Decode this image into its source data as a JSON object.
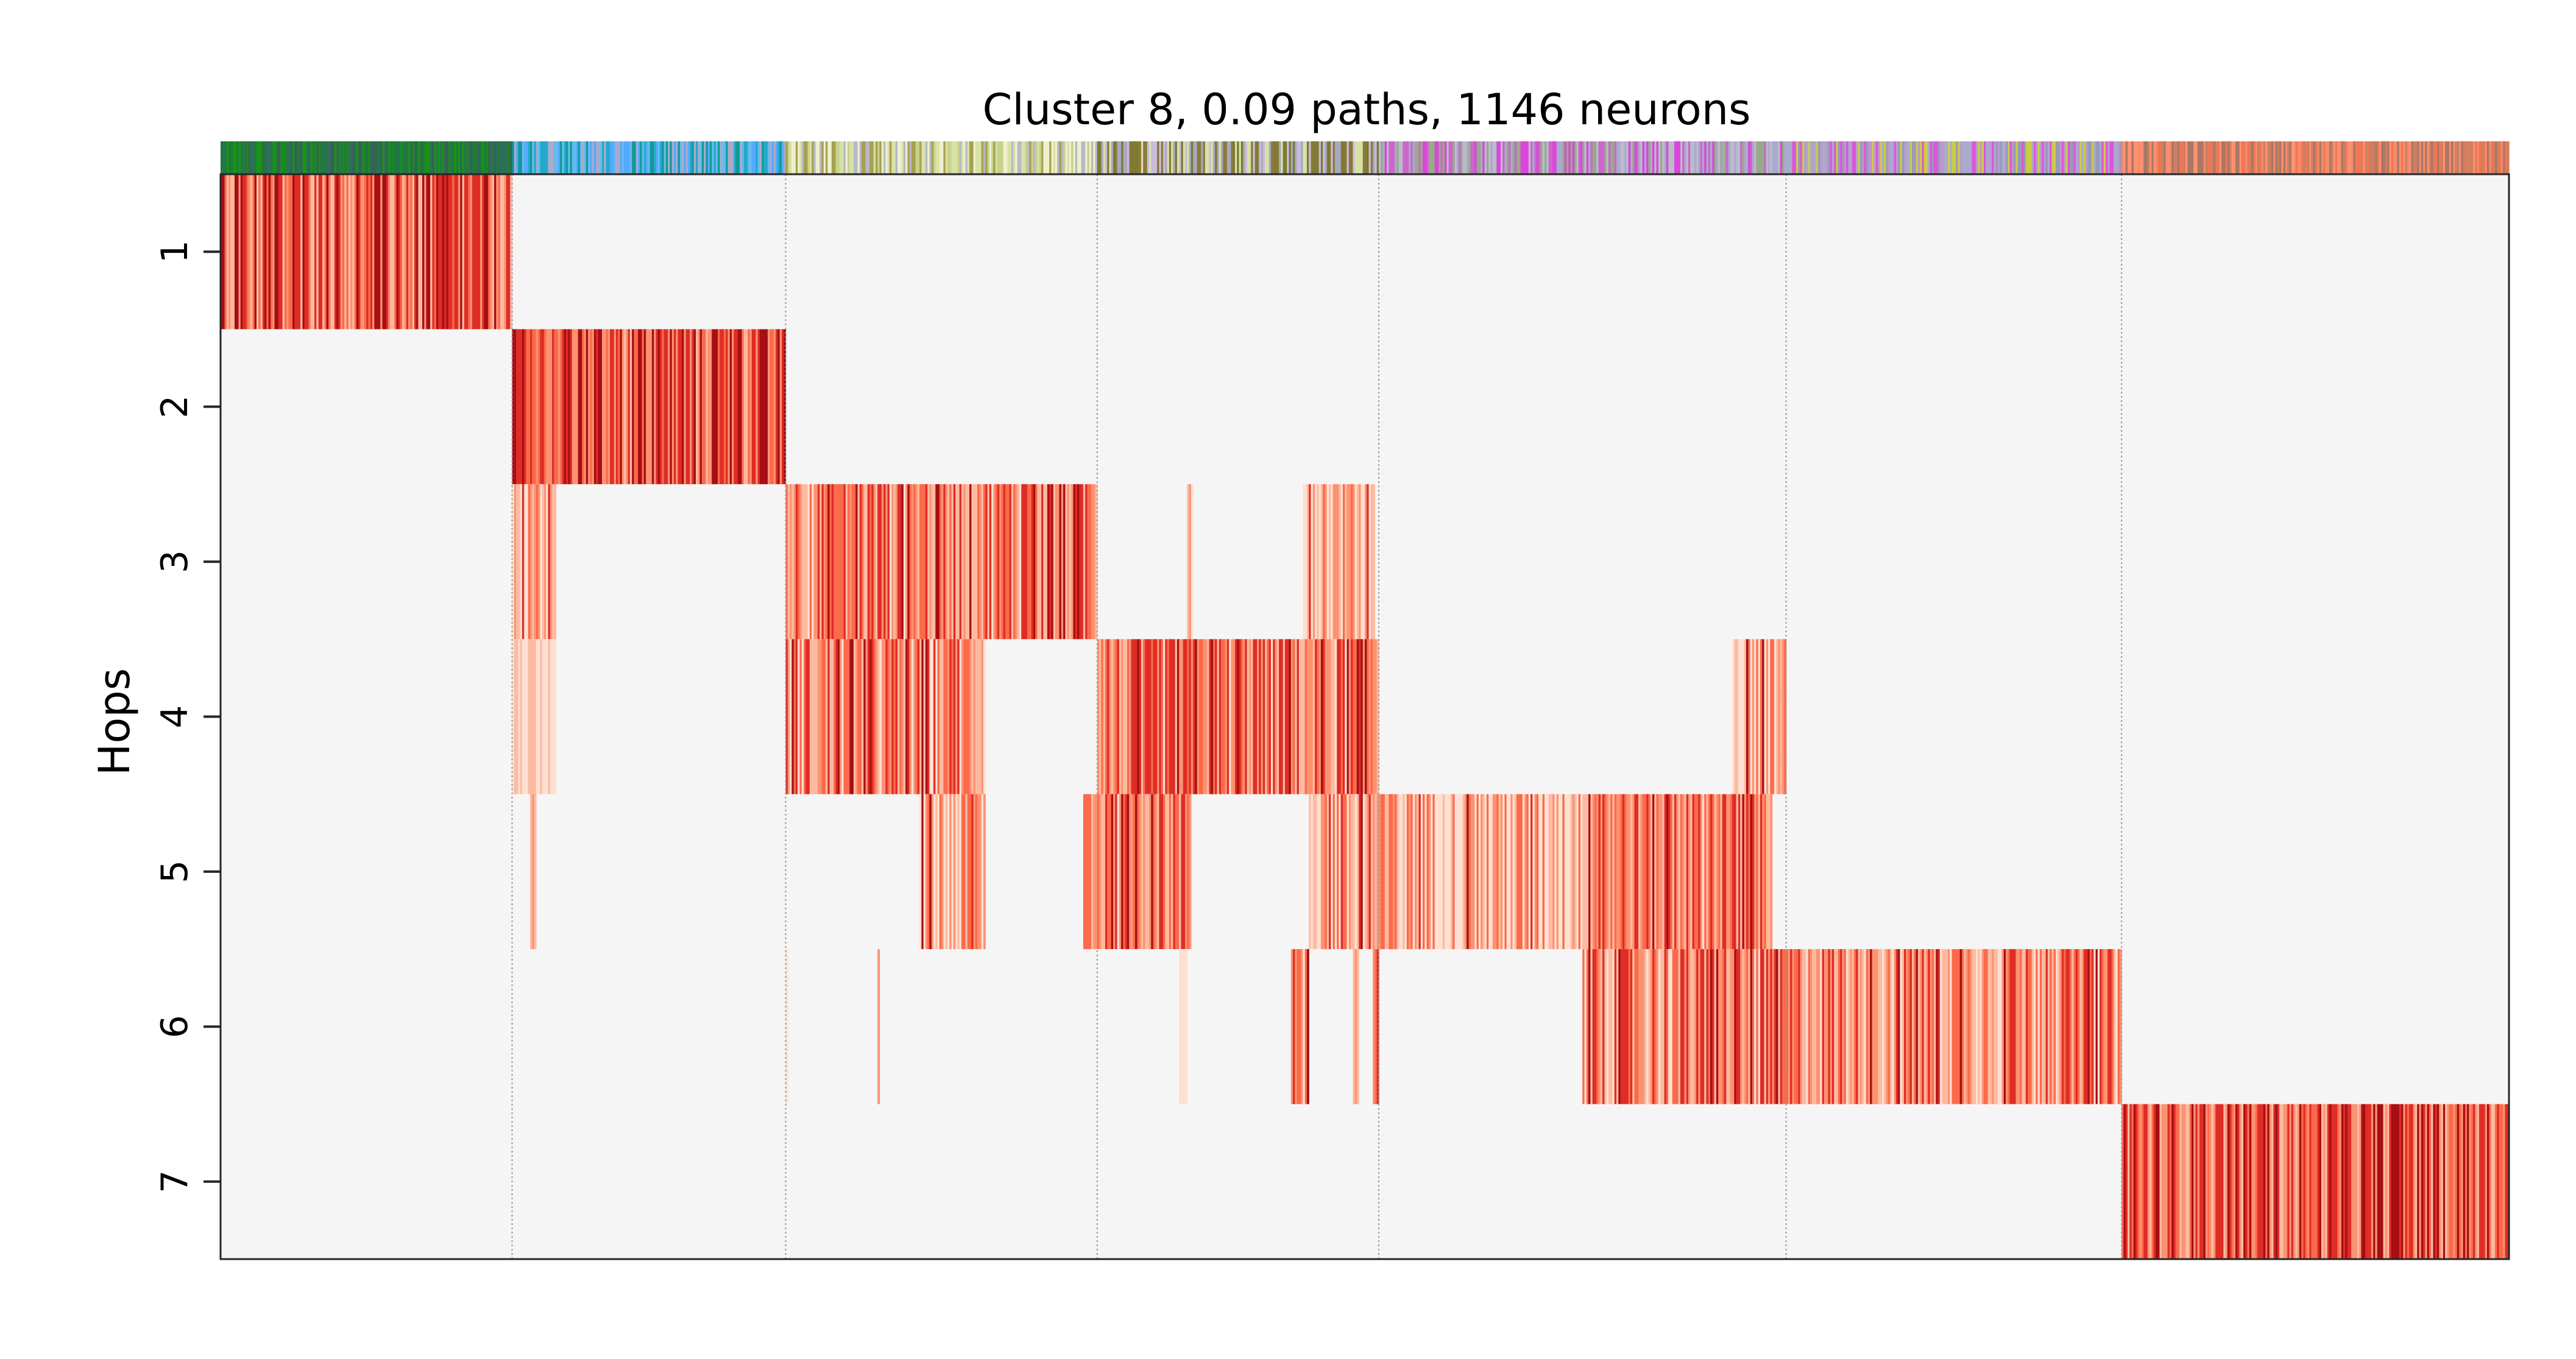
{
  "chart_data": {
    "type": "heatmap",
    "title": "Cluster 8, 0.09 paths, 1146 neurons",
    "xlabel": "",
    "ylabel": "Hops",
    "y_ticks": [
      "1",
      "2",
      "3",
      "4",
      "5",
      "6",
      "7"
    ],
    "x_ticks": [],
    "x_range": [
      0,
      1146
    ],
    "group_boundaries": [
      146,
      283,
      439,
      580,
      784,
      952
    ],
    "background_color": "#f5f5f5",
    "grid": "vertical dotted lines at group boundaries",
    "colormap": [
      "#fee0d2",
      "#fcbba1",
      "#fc9272",
      "#fb6a4a",
      "#de2d26",
      "#a50f15"
    ],
    "column_color_bar": [
      {
        "start": 0,
        "end": 146,
        "colors": [
          "#1a8a1a",
          "#2f6e5a",
          "#3a5f5a",
          "#1e7a3a",
          "#119911"
        ]
      },
      {
        "start": 146,
        "end": 283,
        "colors": [
          "#22aacc",
          "#66bbee",
          "#55aaff",
          "#aaaacc",
          "#119999"
        ]
      },
      {
        "start": 283,
        "end": 439,
        "colors": [
          "#d8e2a6",
          "#c6d38a",
          "#eef0cc",
          "#a8a050",
          "#b8b8c8"
        ]
      },
      {
        "start": 439,
        "end": 580,
        "colors": [
          "#a8a8c0",
          "#8a7a3a",
          "#d8e2a6",
          "#ccbbdd",
          "#7a7a30"
        ]
      },
      {
        "start": 580,
        "end": 784,
        "colors": [
          "#aaaacc",
          "#dd44dd",
          "#bbbbcc",
          "#99aa88",
          "#cc66cc"
        ]
      },
      {
        "start": 784,
        "end": 952,
        "colors": [
          "#aaaacc",
          "#bb99cc",
          "#dd55dd",
          "#cccc44",
          "#9999bb"
        ]
      },
      {
        "start": 952,
        "end": 1146,
        "colors": [
          "#f58a6a",
          "#ee7755",
          "#aa7766",
          "#ff9070",
          "#cc8060"
        ]
      }
    ],
    "blocks": [
      {
        "row": 1,
        "start": 0,
        "end": 146,
        "intensity": 0.55
      },
      {
        "row": 2,
        "start": 146,
        "end": 283,
        "intensity": 0.6
      },
      {
        "row": 3,
        "start": 146,
        "end": 168,
        "intensity": 0.2
      },
      {
        "row": 3,
        "start": 283,
        "end": 439,
        "intensity": 0.5
      },
      {
        "row": 3,
        "start": 484,
        "end": 487,
        "intensity": 0.25
      },
      {
        "row": 3,
        "start": 542,
        "end": 578,
        "intensity": 0.3
      },
      {
        "row": 4,
        "start": 146,
        "end": 168,
        "intensity": 0.04
      },
      {
        "row": 4,
        "start": 283,
        "end": 383,
        "intensity": 0.42
      },
      {
        "row": 4,
        "start": 439,
        "end": 580,
        "intensity": 0.48
      },
      {
        "row": 4,
        "start": 757,
        "end": 784,
        "intensity": 0.28
      },
      {
        "row": 5,
        "start": 155,
        "end": 158,
        "intensity": 0.15
      },
      {
        "row": 5,
        "start": 350,
        "end": 383,
        "intensity": 0.3
      },
      {
        "row": 5,
        "start": 432,
        "end": 486,
        "intensity": 0.5
      },
      {
        "row": 5,
        "start": 545,
        "end": 682,
        "intensity": 0.3
      },
      {
        "row": 5,
        "start": 682,
        "end": 777,
        "intensity": 0.5
      },
      {
        "row": 6,
        "start": 283,
        "end": 284,
        "intensity": 0.15
      },
      {
        "row": 6,
        "start": 329,
        "end": 330,
        "intensity": 0.12
      },
      {
        "row": 6,
        "start": 480,
        "end": 484,
        "intensity": 0.18
      },
      {
        "row": 6,
        "start": 536,
        "end": 545,
        "intensity": 0.35
      },
      {
        "row": 6,
        "start": 567,
        "end": 570,
        "intensity": 0.25
      },
      {
        "row": 6,
        "start": 577,
        "end": 580,
        "intensity": 0.3
      },
      {
        "row": 6,
        "start": 682,
        "end": 952,
        "intensity": 0.45
      },
      {
        "row": 7,
        "start": 952,
        "end": 1146,
        "intensity": 0.58
      }
    ]
  }
}
